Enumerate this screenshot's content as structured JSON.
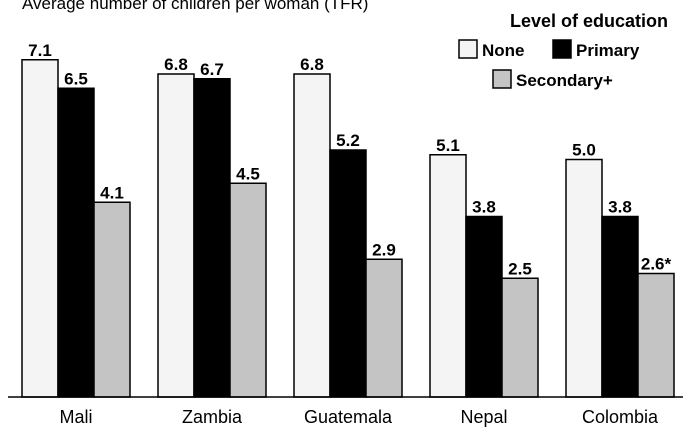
{
  "chart_data": {
    "type": "bar",
    "title": "Average number of children per woman (TFR)",
    "legend_title": "Level of education",
    "legend_position": "top-right",
    "categories": [
      "Mali",
      "Zambia",
      "Guatemala",
      "Nepal",
      "Colombia"
    ],
    "series": [
      {
        "name": "None",
        "values": [
          7.1,
          6.8,
          6.8,
          5.1,
          5.0
        ],
        "labels": [
          "7.1",
          "6.8",
          "6.8",
          "5.1",
          "5.0"
        ],
        "color": "#f4f4f4"
      },
      {
        "name": "Primary",
        "values": [
          6.5,
          6.7,
          5.2,
          3.8,
          3.8
        ],
        "labels": [
          "6.5",
          "6.7",
          "5.2",
          "3.8",
          "3.8"
        ],
        "color": "#000000"
      },
      {
        "name": "Secondary+",
        "values": [
          4.1,
          4.5,
          2.9,
          2.5,
          2.6
        ],
        "labels": [
          "4.1",
          "4.5",
          "2.9",
          "2.5",
          "2.6*"
        ],
        "color": "#c4c4c4"
      }
    ],
    "ylim": [
      0,
      7.5
    ],
    "grid": false
  }
}
